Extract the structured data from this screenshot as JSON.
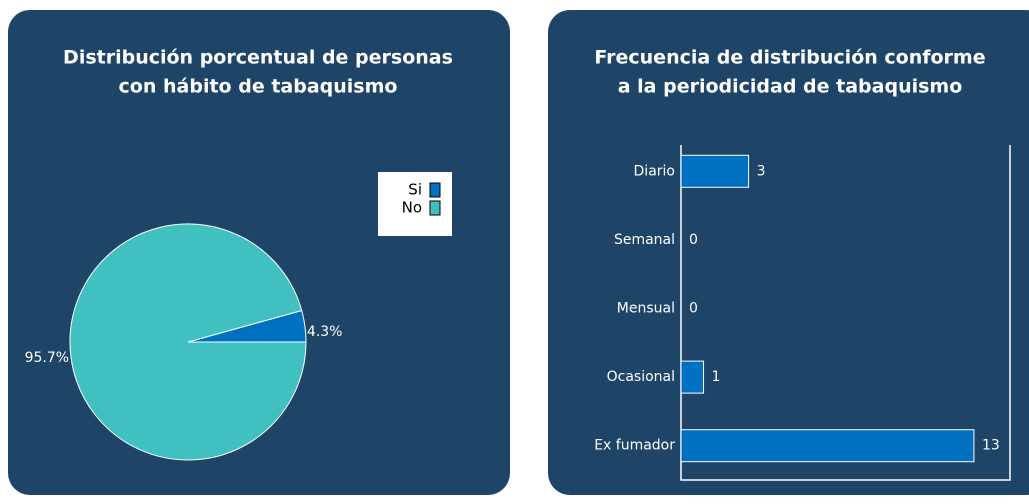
{
  "chart_data": [
    {
      "type": "pie",
      "title": [
        "Distribución porcentual de personas",
        "con hábito de tabaquismo"
      ],
      "categories": [
        "Si",
        "No"
      ],
      "values": [
        4.3,
        95.7
      ],
      "value_labels": [
        "4.3%",
        "95.7%"
      ],
      "colors": [
        "#0070c0",
        "#40c0c0"
      ],
      "legend": "upper right"
    },
    {
      "type": "barh",
      "title": [
        "Frecuencia de distribución conforme",
        "a la periodicidad de tabaquismo"
      ],
      "categories": [
        "Diario",
        "Semanal",
        "Mensual",
        "Ocasional",
        "Ex fumador"
      ],
      "values": [
        3,
        0,
        0,
        1,
        13
      ],
      "color": "#0070c0",
      "xlim": [
        0,
        14.6
      ]
    }
  ]
}
